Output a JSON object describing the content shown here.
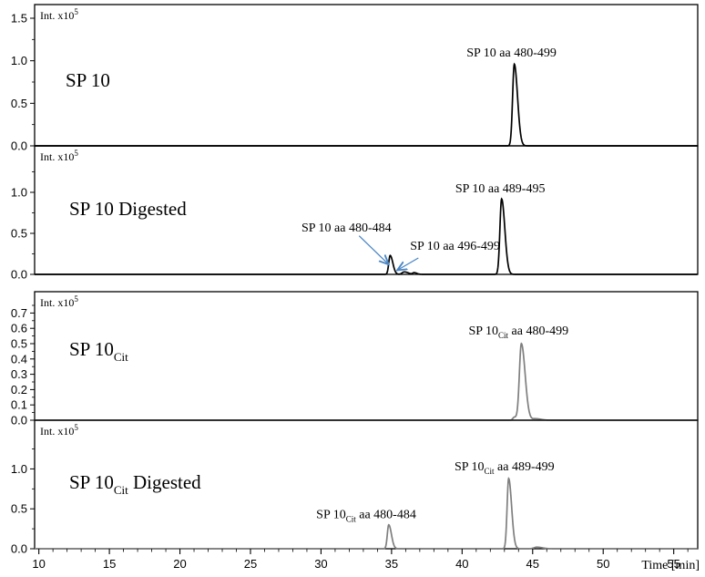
{
  "colors": {
    "black": "#000000",
    "gray": "#7f7f7f",
    "arrow": "#4a86c5"
  },
  "chart_data": [
    {
      "type": "line",
      "title": "SP 10",
      "title_sub": "",
      "title_suffix": "",
      "int_label": "Int. x10",
      "int_exp": "5",
      "series_color": "black",
      "ylim": [
        0,
        1.5
      ],
      "yticks": [
        "0.0",
        "0.5",
        "1.0",
        "1.5"
      ],
      "peaks": [
        {
          "x": 43.7,
          "y": 0.96,
          "w": 0.12
        }
      ],
      "annotations": [
        {
          "pre": "SP 10",
          "sub": "",
          "post": " aa 480-499",
          "x": 43.5,
          "y": 1.05
        }
      ],
      "arrows": []
    },
    {
      "type": "line",
      "title": "SP 10 Digested",
      "title_sub": "",
      "title_suffix": "",
      "int_label": "Int. x10",
      "int_exp": "5",
      "series_color": "black",
      "ylim": [
        0,
        1.4
      ],
      "yticks": [
        "0.0",
        "0.5",
        "1.0"
      ],
      "peaks": [
        {
          "x": 34.9,
          "y": 0.23,
          "w": 0.1
        },
        {
          "x": 35.9,
          "y": 0.03,
          "w": 0.15
        },
        {
          "x": 36.6,
          "y": 0.02,
          "w": 0.1
        },
        {
          "x": 42.8,
          "y": 0.92,
          "w": 0.12
        }
      ],
      "annotations": [
        {
          "pre": "SP 10",
          "sub": "",
          "post": " aa 480-484",
          "x": 31.8,
          "y": 0.52
        },
        {
          "pre": "SP 10",
          "sub": "",
          "post": " aa 496-499",
          "x": 39.5,
          "y": 0.3
        },
        {
          "pre": "SP 10",
          "sub": "",
          "post": " aa 489-495",
          "x": 42.7,
          "y": 1.0
        }
      ],
      "arrows": [
        {
          "x1": 32.7,
          "y1": 0.47,
          "x2": 34.8,
          "y2": 0.12
        },
        {
          "x1": 36.9,
          "y1": 0.2,
          "x2": 35.4,
          "y2": 0.05
        }
      ]
    },
    {
      "type": "line",
      "title": "SP 10",
      "title_sub": "Cit",
      "title_suffix": "",
      "int_label": "Int. x10",
      "int_exp": "5",
      "series_color": "gray",
      "ylim": [
        0,
        0.75
      ],
      "yticks": [
        "0.0",
        "0.1",
        "0.2",
        "0.3",
        "0.4",
        "0.5",
        "0.6",
        "0.7"
      ],
      "peaks": [
        {
          "x": 44.2,
          "y": 0.5,
          "w": 0.14
        },
        {
          "x": 43.7,
          "y": 0.02,
          "w": 0.1
        },
        {
          "x": 45.2,
          "y": 0.01,
          "w": 0.2
        }
      ],
      "annotations": [
        {
          "pre": "SP 10",
          "sub": "Cit",
          "post": " aa 480-499",
          "x": 44.0,
          "y": 0.56
        }
      ],
      "arrows": []
    },
    {
      "type": "line",
      "title": "SP 10",
      "title_sub": "Cit",
      "title_suffix": " Digested",
      "int_label": "Int. x10",
      "int_exp": "5",
      "series_color": "gray",
      "ylim": [
        0,
        1.45
      ],
      "yticks": [
        "0.0",
        "0.5",
        "1.0"
      ],
      "peaks": [
        {
          "x": 34.8,
          "y": 0.3,
          "w": 0.1
        },
        {
          "x": 43.3,
          "y": 0.88,
          "w": 0.11
        },
        {
          "x": 45.3,
          "y": 0.02,
          "w": 0.2
        }
      ],
      "annotations": [
        {
          "pre": "SP 10",
          "sub": "Cit",
          "post": " aa 480-484",
          "x": 33.2,
          "y": 0.38
        },
        {
          "pre": "SP 10",
          "sub": "Cit",
          "post": " aa 489-499",
          "x": 43.0,
          "y": 0.98
        }
      ],
      "arrows": []
    }
  ],
  "xaxis": {
    "range": [
      9.7,
      56.7
    ],
    "ticks": [
      10,
      15,
      20,
      25,
      30,
      35,
      40,
      45,
      50,
      55
    ],
    "label": "Time [min]"
  }
}
